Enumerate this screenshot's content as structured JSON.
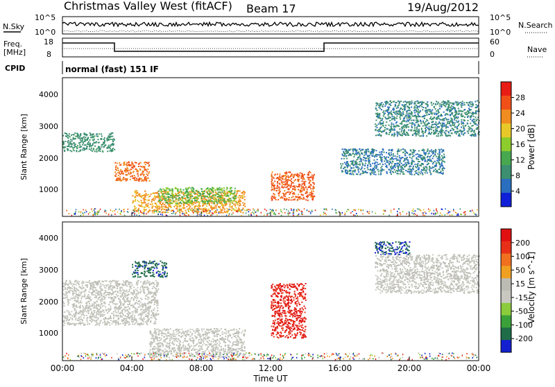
{
  "header": {
    "title": "Christmas Valley West (fitACF)",
    "beam": "Beam 17",
    "date": "19/Aug/2012"
  },
  "strips": {
    "nsky_label": "N.Sky",
    "nsearch_label": "N.Search",
    "noise_ticks_left": [
      "10^5",
      "10^0"
    ],
    "noise_ticks_right": [
      "10^5",
      "10^0"
    ],
    "freq_label_1": "Freq.",
    "freq_label_2": "[MHz]",
    "freq_ticks": [
      "18",
      "8"
    ],
    "nave_label": "Nave",
    "nave_ticks": [
      "60",
      "0"
    ],
    "cpid_label": "CPID",
    "cpid_value": "normal (fast) 151 IF"
  },
  "colors": {
    "power": [
      "#1020d8",
      "#2a6ec0",
      "#3c8f70",
      "#48a850",
      "#8ccc2c",
      "#e8c828",
      "#f08c20",
      "#f05018",
      "#e81c14"
    ],
    "velocity": [
      "#1420d0",
      "#1e6c48",
      "#3aa03a",
      "#8ccc3c",
      "#c8c8c0",
      "#bcbcb4",
      "#f0a020",
      "#f07020",
      "#e83018",
      "#e01010"
    ]
  },
  "chart_data": [
    {
      "type": "heatmap",
      "panel": "power",
      "ylabel": "Slant Range [km]",
      "y_ticks": [
        "4000",
        "3000",
        "2000",
        "1000"
      ],
      "ylim": [
        180,
        4500
      ],
      "xlim_hours": [
        0,
        24
      ],
      "colorbar_label": "Power [dB]",
      "colorbar_ticks": [
        "28",
        "24",
        "20",
        "16",
        "12",
        "8",
        "4"
      ],
      "colorbar_range": [
        0,
        32
      ],
      "features": [
        {
          "start": "00:00",
          "end": "03:00",
          "range_km": [
            2200,
            2800
          ],
          "value": 9
        },
        {
          "start": "03:00",
          "end": "05:00",
          "range_km": [
            1300,
            1900
          ],
          "value": 25
        },
        {
          "start": "04:00",
          "end": "10:30",
          "range_km": [
            300,
            1000
          ],
          "value": 22
        },
        {
          "start": "05:30",
          "end": "10:00",
          "range_km": [
            600,
            1100
          ],
          "value": 14
        },
        {
          "start": "12:00",
          "end": "14:30",
          "range_km": [
            700,
            1600
          ],
          "value": 26
        },
        {
          "start": "16:00",
          "end": "22:00",
          "range_km": [
            1500,
            2300
          ],
          "value": 7
        },
        {
          "start": "18:00",
          "end": "24:00",
          "range_km": [
            2700,
            3800
          ],
          "value": 8
        }
      ]
    },
    {
      "type": "heatmap",
      "panel": "velocity",
      "ylabel": "Slant Range [km]",
      "y_ticks": [
        "4000",
        "3000",
        "2000",
        "1000"
      ],
      "ylim": [
        180,
        4500
      ],
      "xlim_hours": [
        0,
        24
      ],
      "colorbar_label": "Velocity [m s^-1]",
      "colorbar_ticks": [
        "200",
        "100",
        "50",
        "15",
        "-15",
        "-50",
        "-100",
        "-200"
      ],
      "colorbar_range": [
        -250,
        250
      ],
      "features": [
        {
          "start": "00:00",
          "end": "05:30",
          "range_km": [
            1300,
            2700
          ],
          "value": 0
        },
        {
          "start": "04:00",
          "end": "06:00",
          "range_km": [
            2800,
            3300
          ],
          "value": -180
        },
        {
          "start": "05:00",
          "end": "10:30",
          "range_km": [
            300,
            1200
          ],
          "value": 0
        },
        {
          "start": "12:00",
          "end": "14:00",
          "range_km": [
            900,
            2600
          ],
          "value": 200
        },
        {
          "start": "18:00",
          "end": "20:00",
          "range_km": [
            3500,
            3900
          ],
          "value": -200
        },
        {
          "start": "18:00",
          "end": "24:00",
          "range_km": [
            2300,
            3500
          ],
          "value": 0
        }
      ]
    }
  ],
  "x_axis": {
    "ticks": [
      "00:00",
      "04:00",
      "08:00",
      "12:00",
      "16:00",
      "20:00",
      "00:00"
    ],
    "label": "Time UT"
  }
}
